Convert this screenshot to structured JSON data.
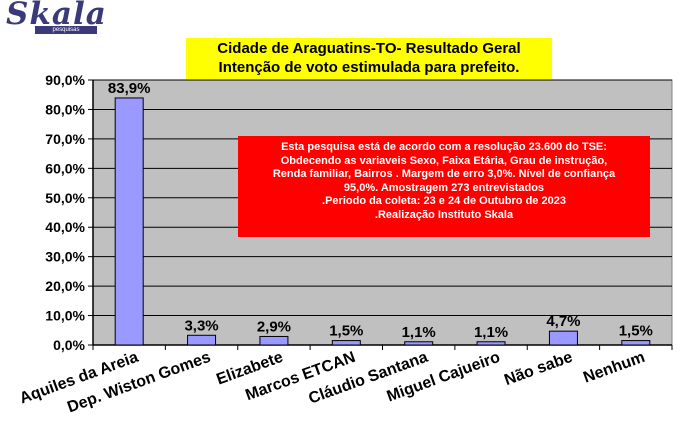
{
  "logo": {
    "name": "Skala",
    "tagline": "pesquisas"
  },
  "title": {
    "line1": "Cidade de Araguatins-TO- Resultado Geral",
    "line2": "Intenção de voto estimulada para prefeito."
  },
  "notice": {
    "lines": [
      "Esta pesquisa está de acordo com a resolução 23.600 do TSE:",
      "Obdecendo as variaveis Sexo, Faixa Etária, Grau de instrução,",
      "Renda familiar, Bairros . Margem de erro 3,0%. Nível de confiança",
      "95,0%. Amostragem 273 entrevistados",
      ".Periodo da coleta: 23 e 24 de Outubro de 2023",
      ".Realização Instituto Skala"
    ]
  },
  "chart_data": {
    "type": "bar",
    "categories": [
      "Aquiles da Areia",
      "Dep. Wiston Gomes",
      "Elizabete",
      "Marcos ETCAN",
      "Cláudio Santana",
      "Miguel Cajueiro",
      "Não sabe",
      "Nenhum"
    ],
    "values": [
      83.9,
      3.3,
      2.9,
      1.5,
      1.1,
      1.1,
      4.7,
      1.5
    ],
    "data_labels": [
      "83,9%",
      "3,3%",
      "2,9%",
      "1,5%",
      "1,1%",
      "1,1%",
      "4,7%",
      "1,5%"
    ],
    "y_ticks": [
      0,
      10,
      20,
      30,
      40,
      50,
      60,
      70,
      80,
      90
    ],
    "y_tick_labels": [
      "0,0%",
      "10,0%",
      "20,0%",
      "30,0%",
      "40,0%",
      "50,0%",
      "60,0%",
      "70,0%",
      "80,0%",
      "90,0%"
    ],
    "ylim": [
      0,
      90
    ],
    "grid": true,
    "colors": {
      "plot_bg": "#c0c0c0",
      "bar": "#9999ff",
      "bar_border": "#000000"
    }
  }
}
